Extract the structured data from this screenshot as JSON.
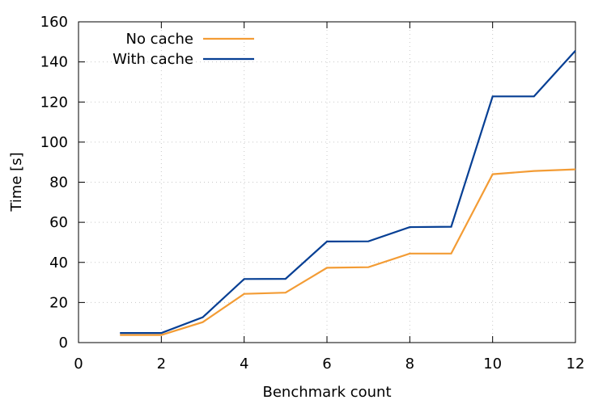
{
  "chart_data": {
    "type": "line",
    "xlabel": "Benchmark count",
    "ylabel": "Time [s]",
    "xlim": [
      0,
      12
    ],
    "ylim": [
      0,
      160
    ],
    "xticks": [
      0,
      2,
      4,
      6,
      8,
      10,
      12
    ],
    "yticks": [
      0,
      20,
      40,
      60,
      80,
      100,
      120,
      140,
      160
    ],
    "grid": true,
    "legend_position": "top-left",
    "x": [
      1,
      2,
      3,
      4,
      5,
      6,
      7,
      8,
      9,
      10,
      11,
      12
    ],
    "series": [
      {
        "name": "No cache",
        "color": "#f39c35",
        "values": [
          3.8,
          3.8,
          10.2,
          24.3,
          24.9,
          37.3,
          37.6,
          44.4,
          44.4,
          84.0,
          85.6,
          86.4
        ]
      },
      {
        "name": "With cache",
        "color": "#063f94",
        "values": [
          4.8,
          4.8,
          12.6,
          31.7,
          31.8,
          50.4,
          50.5,
          57.6,
          57.8,
          122.8,
          122.8,
          145.6
        ]
      }
    ]
  }
}
